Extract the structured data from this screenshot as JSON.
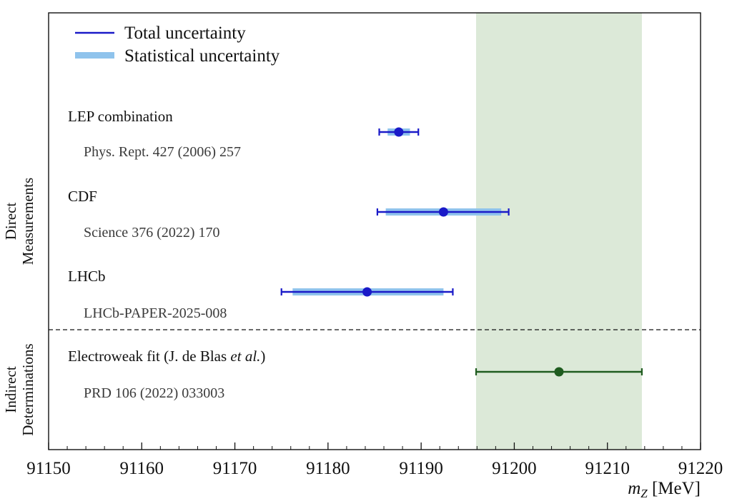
{
  "chart_data": {
    "type": "scatter",
    "title": "",
    "xlabel": "m",
    "xlabel_sub": "Z",
    "xlabel_unit": "[MeV]",
    "ylabel": "",
    "xlim": [
      91150,
      91220
    ],
    "x_ticks": [
      91150,
      91160,
      91170,
      91180,
      91190,
      91200,
      91210,
      91220
    ],
    "x_tick_labels": [
      "91150",
      "91160",
      "91170",
      "91180",
      "91190",
      "91200",
      "91210",
      "91220"
    ],
    "grid": false,
    "legend": {
      "placement": "top-left",
      "entries": [
        {
          "label": "Total uncertainty",
          "style": "line",
          "color": "#1a1ac8"
        },
        {
          "label": "Statistical uncertainty",
          "style": "band",
          "color": "#8fc3ec"
        }
      ]
    },
    "sections": [
      {
        "label_line1": "Direct",
        "label_line2": "Measurements"
      },
      {
        "label_line1": "Indirect",
        "label_line2": "Determinations"
      }
    ],
    "band": {
      "x_min": 91195.9,
      "x_max": 91213.7,
      "color": "#dce9d8"
    },
    "measurements": [
      {
        "name": "LEP combination",
        "reference": "Phys. Rept. 427 (2006) 257",
        "value": 91187.6,
        "total_low": 91185.5,
        "total_high": 91189.7,
        "stat_low": 91186.4,
        "stat_high": 91188.8,
        "color": "#1a1ac8",
        "stat_color": "#8fc3ec"
      },
      {
        "name": "CDF",
        "reference": "Science 376 (2022) 170",
        "value": 91192.4,
        "total_low": 91185.3,
        "total_high": 91199.4,
        "stat_low": 91186.2,
        "stat_high": 91198.6,
        "color": "#1a1ac8",
        "stat_color": "#8fc3ec"
      },
      {
        "name": "LHCb",
        "reference": "LHCb-PAPER-2025-008",
        "value": 91184.2,
        "total_low": 91175.0,
        "total_high": 91193.4,
        "stat_low": 91176.2,
        "stat_high": 91192.4,
        "color": "#1a1ac8",
        "stat_color": "#8fc3ec"
      },
      {
        "name": "Electroweak fit (J. de Blas ",
        "name_italic": "et al.",
        "name_suffix": ")",
        "reference": "PRD 106 (2022) 033003",
        "value": 91204.8,
        "total_low": 91195.9,
        "total_high": 91213.7,
        "color": "#1f5c1f"
      }
    ]
  }
}
